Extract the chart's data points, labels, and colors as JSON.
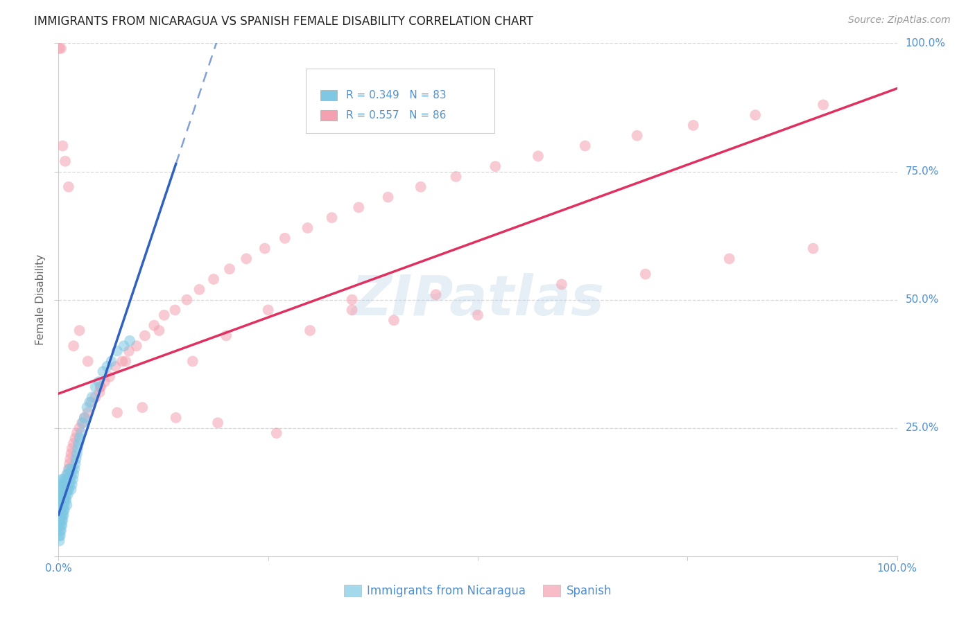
{
  "title": "IMMIGRANTS FROM NICARAGUA VS SPANISH FEMALE DISABILITY CORRELATION CHART",
  "source": "Source: ZipAtlas.com",
  "ylabel": "Female Disability",
  "xlim": [
    0,
    1
  ],
  "ylim": [
    0,
    1
  ],
  "blue_R": 0.349,
  "blue_N": 83,
  "pink_R": 0.557,
  "pink_N": 86,
  "blue_color": "#7ec8e3",
  "pink_color": "#f4a0b0",
  "blue_line_color": "#3060c0",
  "pink_line_color": "#e03060",
  "watermark_text": "ZIPatlas",
  "background_color": "#ffffff",
  "grid_color": "#d8d8d8",
  "legend_label_blue": "Immigrants from Nicaragua",
  "legend_label_pink": "Spanish",
  "tick_color": "#5090d0",
  "title_color": "#222222",
  "ylabel_color": "#666666",
  "blue_scatter_x": [
    0.001,
    0.001,
    0.001,
    0.001,
    0.001,
    0.002,
    0.002,
    0.002,
    0.002,
    0.002,
    0.002,
    0.003,
    0.003,
    0.003,
    0.003,
    0.003,
    0.004,
    0.004,
    0.004,
    0.004,
    0.004,
    0.005,
    0.005,
    0.005,
    0.005,
    0.006,
    0.006,
    0.006,
    0.006,
    0.007,
    0.007,
    0.007,
    0.008,
    0.008,
    0.008,
    0.009,
    0.009,
    0.01,
    0.01,
    0.01,
    0.011,
    0.011,
    0.012,
    0.012,
    0.013,
    0.013,
    0.014,
    0.015,
    0.015,
    0.016,
    0.016,
    0.017,
    0.018,
    0.019,
    0.02,
    0.021,
    0.022,
    0.023,
    0.024,
    0.025,
    0.027,
    0.029,
    0.031,
    0.034,
    0.037,
    0.04,
    0.044,
    0.048,
    0.053,
    0.058,
    0.063,
    0.07,
    0.078,
    0.085,
    0.001,
    0.002,
    0.003,
    0.004,
    0.005,
    0.006,
    0.007,
    0.009,
    0.011
  ],
  "blue_scatter_y": [
    0.04,
    0.06,
    0.07,
    0.08,
    0.1,
    0.05,
    0.07,
    0.08,
    0.09,
    0.11,
    0.13,
    0.06,
    0.08,
    0.1,
    0.12,
    0.14,
    0.07,
    0.09,
    0.11,
    0.13,
    0.15,
    0.08,
    0.1,
    0.12,
    0.14,
    0.09,
    0.11,
    0.13,
    0.15,
    0.1,
    0.12,
    0.14,
    0.11,
    0.13,
    0.15,
    0.12,
    0.14,
    0.1,
    0.13,
    0.16,
    0.12,
    0.15,
    0.13,
    0.16,
    0.14,
    0.17,
    0.15,
    0.13,
    0.16,
    0.14,
    0.17,
    0.15,
    0.16,
    0.17,
    0.18,
    0.19,
    0.2,
    0.21,
    0.22,
    0.23,
    0.24,
    0.26,
    0.27,
    0.29,
    0.3,
    0.31,
    0.33,
    0.34,
    0.36,
    0.37,
    0.38,
    0.4,
    0.41,
    0.42,
    0.03,
    0.04,
    0.05,
    0.06,
    0.07,
    0.08,
    0.09,
    0.11,
    0.13
  ],
  "pink_scatter_x": [
    0.001,
    0.002,
    0.003,
    0.004,
    0.005,
    0.006,
    0.007,
    0.008,
    0.009,
    0.01,
    0.011,
    0.012,
    0.013,
    0.014,
    0.015,
    0.016,
    0.018,
    0.02,
    0.022,
    0.025,
    0.028,
    0.031,
    0.035,
    0.039,
    0.044,
    0.049,
    0.055,
    0.061,
    0.068,
    0.076,
    0.084,
    0.093,
    0.103,
    0.114,
    0.126,
    0.139,
    0.153,
    0.168,
    0.185,
    0.204,
    0.224,
    0.246,
    0.27,
    0.297,
    0.326,
    0.358,
    0.393,
    0.432,
    0.474,
    0.521,
    0.572,
    0.628,
    0.69,
    0.757,
    0.831,
    0.912,
    0.05,
    0.08,
    0.12,
    0.16,
    0.2,
    0.25,
    0.3,
    0.35,
    0.4,
    0.45,
    0.5,
    0.6,
    0.7,
    0.8,
    0.9,
    0.001,
    0.003,
    0.005,
    0.008,
    0.012,
    0.018,
    0.025,
    0.035,
    0.05,
    0.07,
    0.1,
    0.14,
    0.19,
    0.26,
    0.35
  ],
  "pink_scatter_y": [
    0.06,
    0.07,
    0.08,
    0.09,
    0.1,
    0.11,
    0.12,
    0.13,
    0.14,
    0.15,
    0.16,
    0.17,
    0.18,
    0.19,
    0.2,
    0.21,
    0.22,
    0.23,
    0.24,
    0.25,
    0.26,
    0.27,
    0.28,
    0.3,
    0.31,
    0.32,
    0.34,
    0.35,
    0.37,
    0.38,
    0.4,
    0.41,
    0.43,
    0.45,
    0.47,
    0.48,
    0.5,
    0.52,
    0.54,
    0.56,
    0.58,
    0.6,
    0.62,
    0.64,
    0.66,
    0.68,
    0.7,
    0.72,
    0.74,
    0.76,
    0.78,
    0.8,
    0.82,
    0.84,
    0.86,
    0.88,
    0.33,
    0.38,
    0.44,
    0.38,
    0.43,
    0.48,
    0.44,
    0.5,
    0.46,
    0.51,
    0.47,
    0.53,
    0.55,
    0.58,
    0.6,
    0.99,
    0.99,
    0.8,
    0.77,
    0.72,
    0.41,
    0.44,
    0.38,
    0.33,
    0.28,
    0.29,
    0.27,
    0.26,
    0.24,
    0.48
  ]
}
